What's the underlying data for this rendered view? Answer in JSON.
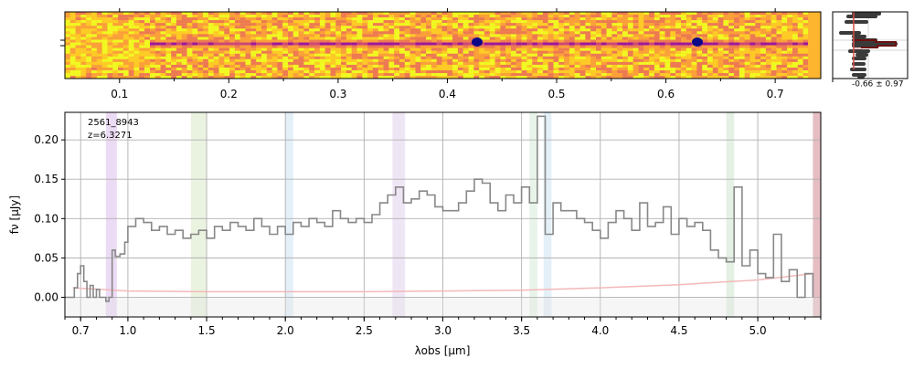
{
  "chart_data": [
    {
      "type": "heatmap",
      "x_ticks": [
        0.1,
        0.2,
        0.3,
        0.4,
        0.5,
        0.6,
        0.7
      ],
      "x_minor_ticks": [
        0.15,
        0.25,
        0.35,
        0.45,
        0.55,
        0.65
      ],
      "xlim": [
        0.05,
        0.73
      ],
      "colormap": "plasma",
      "trace": {
        "name": "",
        "x": [
          0.05,
          0.13,
          0.17,
          0.2,
          0.25,
          0.3,
          0.35,
          0.4,
          0.45,
          0.5,
          0.55,
          0.6,
          0.65,
          0.7,
          0.73
        ],
        "profile": [
          0.66,
          0.5,
          0.7,
          0.72,
          0.66,
          0.68,
          0.7,
          0.66,
          0.64,
          0.6,
          0.55,
          0.52,
          0.48,
          0.5,
          0.55
        ]
      }
    },
    {
      "type": "histogram",
      "label": "-0.66 ± 0.97",
      "colors": {
        "gray": "#444444",
        "dark": "#6b1010",
        "pink": "#f4b8b8",
        "red": "#d24a4a"
      }
    },
    {
      "type": "line",
      "annotation": [
        "2561_8943",
        "z=6.3271"
      ],
      "xlabel": "λobs [µm]",
      "ylabel": "fν [µJy]",
      "xlim": [
        0.6,
        5.4
      ],
      "ylim": [
        -0.025,
        0.235
      ],
      "x_tick_labels": [
        "0.7",
        "1.0",
        "1.5",
        "2.0",
        "2.5",
        "3.0",
        "3.5",
        "4.0",
        "4.5",
        "5.0"
      ],
      "x_tick_pos": [
        0.7,
        1.0,
        1.5,
        2.0,
        2.5,
        3.0,
        3.5,
        4.0,
        4.5,
        5.0
      ],
      "y_ticks": [
        0.0,
        0.05,
        0.1,
        0.15,
        0.2
      ],
      "y_tick_labels": [
        "0.00",
        "0.05",
        "0.10",
        "0.15",
        "0.20"
      ],
      "grid": true,
      "line_bands": [
        {
          "x0": 0.86,
          "x1": 0.93,
          "color": "#e2c7ee"
        },
        {
          "x0": 1.4,
          "x1": 1.5,
          "color": "#dfeccf"
        },
        {
          "x0": 2.0,
          "x1": 2.05,
          "color": "#d6e8f4"
        },
        {
          "x0": 2.68,
          "x1": 2.76,
          "color": "#e6d8f0"
        },
        {
          "x0": 3.55,
          "x1": 3.6,
          "color": "#dbeedd"
        },
        {
          "x0": 3.64,
          "x1": 3.69,
          "color": "#d6e8f4"
        },
        {
          "x0": 4.8,
          "x1": 4.85,
          "color": "#d6ead6"
        },
        {
          "x0": 5.35,
          "x1": 5.4,
          "color": "#d79aa2"
        }
      ],
      "series": [
        {
          "name": "",
          "color": "#888888",
          "x": [
            0.6,
            0.62,
            0.64,
            0.66,
            0.68,
            0.7,
            0.72,
            0.74,
            0.76,
            0.78,
            0.8,
            0.82,
            0.84,
            0.86,
            0.88,
            0.9,
            0.92,
            0.95,
            0.98,
            1.0,
            1.05,
            1.1,
            1.15,
            1.2,
            1.25,
            1.3,
            1.35,
            1.4,
            1.45,
            1.5,
            1.55,
            1.6,
            1.65,
            1.7,
            1.75,
            1.8,
            1.85,
            1.9,
            1.95,
            2.0,
            2.05,
            2.1,
            2.15,
            2.2,
            2.25,
            2.3,
            2.35,
            2.4,
            2.45,
            2.5,
            2.55,
            2.6,
            2.65,
            2.7,
            2.75,
            2.8,
            2.85,
            2.9,
            2.95,
            3.0,
            3.05,
            3.1,
            3.15,
            3.2,
            3.25,
            3.3,
            3.35,
            3.4,
            3.45,
            3.5,
            3.55,
            3.6,
            3.65,
            3.7,
            3.75,
            3.8,
            3.85,
            3.9,
            3.95,
            4.0,
            4.05,
            4.1,
            4.15,
            4.2,
            4.25,
            4.3,
            4.35,
            4.4,
            4.45,
            4.5,
            4.55,
            4.6,
            4.65,
            4.7,
            4.75,
            4.8,
            4.85,
            4.9,
            4.95,
            5.0,
            5.05,
            5.1,
            5.15,
            5.2,
            5.25,
            5.3,
            5.35
          ],
          "y": [
            0.0,
            0.0,
            0.0,
            0.012,
            0.03,
            0.04,
            0.02,
            0.0,
            0.015,
            0.0,
            0.01,
            0.0,
            0.0,
            -0.005,
            0.0,
            0.06,
            0.052,
            0.055,
            0.07,
            0.09,
            0.1,
            0.095,
            0.085,
            0.09,
            0.08,
            0.085,
            0.075,
            0.08,
            0.085,
            0.075,
            0.09,
            0.085,
            0.095,
            0.09,
            0.085,
            0.1,
            0.09,
            0.08,
            0.09,
            0.08,
            0.095,
            0.09,
            0.1,
            0.095,
            0.09,
            0.11,
            0.1,
            0.095,
            0.1,
            0.095,
            0.105,
            0.12,
            0.13,
            0.14,
            0.12,
            0.125,
            0.135,
            0.13,
            0.115,
            0.11,
            0.11,
            0.12,
            0.135,
            0.15,
            0.145,
            0.12,
            0.11,
            0.13,
            0.12,
            0.14,
            0.12,
            0.23,
            0.08,
            0.12,
            0.11,
            0.11,
            0.1,
            0.095,
            0.085,
            0.075,
            0.095,
            0.11,
            0.1,
            0.085,
            0.12,
            0.09,
            0.095,
            0.115,
            0.08,
            0.1,
            0.09,
            0.095,
            0.085,
            0.06,
            0.05,
            0.045,
            0.14,
            0.04,
            0.06,
            0.03,
            0.025,
            0.08,
            0.02,
            0.035,
            0.0,
            0.03,
            0.0
          ]
        },
        {
          "name": "",
          "color": "#f4b8b8",
          "x": [
            0.65,
            1.0,
            1.5,
            2.0,
            2.5,
            3.0,
            3.5,
            4.0,
            4.5,
            5.0,
            5.35
          ],
          "y": [
            0.012,
            0.008,
            0.007,
            0.007,
            0.007,
            0.008,
            0.009,
            0.012,
            0.016,
            0.022,
            0.03
          ]
        }
      ]
    }
  ]
}
